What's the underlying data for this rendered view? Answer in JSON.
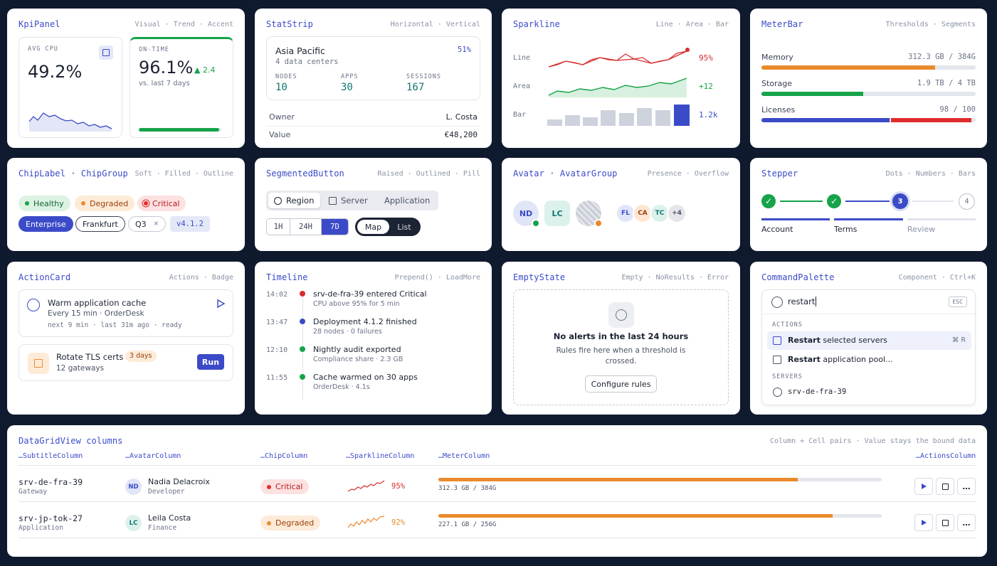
{
  "kpi": {
    "title": "KpiPanel",
    "sub": "Visual · Trend · Accent",
    "cpu_label": "AVG CPU",
    "cpu_value": "49.2%",
    "on_label": "ON-TIME",
    "on_value": "96.1%",
    "on_trend": "▲ 2.4",
    "on_note": "vs. last 7 days",
    "on_progress": 0.97
  },
  "stat": {
    "title": "StatStrip",
    "sub": "Horizontal · Vertical",
    "region": "Asia Pacific",
    "region_sub": "4 data centers",
    "pct": "51%",
    "nodes_l": "NODES",
    "nodes": "10",
    "apps_l": "APPS",
    "apps": "30",
    "sess_l": "SESSIONS",
    "sess": "167",
    "owner_l": "Owner",
    "owner": "L. Costa",
    "value_l": "Value",
    "value": "€48,200"
  },
  "spark": {
    "title": "Sparkline",
    "sub": "Line · Area · Bar",
    "line_l": "Line",
    "line_v": "95%",
    "area_l": "Area",
    "area_v": "+12",
    "bar_l": "Bar",
    "bar_v": "1.2k",
    "line_color": "#d92d2d",
    "area_color": "#16a34a",
    "bar_color": "#3b4bc8"
  },
  "meter": {
    "title": "MeterBar",
    "sub": "Thresholds · Segments",
    "mem_l": "Memory",
    "mem_v": "312.3 GB / 384G",
    "mem_frac": 0.81,
    "sto_l": "Storage",
    "sto_v": "1.9 TB / 4 TB",
    "sto_frac": 0.475,
    "lic_l": "Licenses",
    "lic_v": "98 / 100",
    "lic_frac": 0.98
  },
  "chip": {
    "title": "ChipLabel · ChipGroup",
    "sub": "Soft · Filled · Outline",
    "healthy": "Healthy",
    "degraded": "Degraded",
    "critical": "Critical",
    "enterprise": "Enterprise",
    "frankfurt": "Frankfurt",
    "q3": "Q3",
    "version": "v4.1.2"
  },
  "seg": {
    "title": "SegmentedButton",
    "sub": "Raised · Outlined · Pill",
    "region": "Region",
    "server": "Server",
    "application": "Application",
    "h1": "1H",
    "h24": "24H",
    "d7": "7D",
    "map": "Map",
    "list": "List"
  },
  "avatar": {
    "title": "Avatar · AvatarGroup",
    "sub": "Presence · Overflow",
    "a1": "ND",
    "a2": "LC",
    "g1": "FL",
    "g2": "CA",
    "g3": "TC",
    "more": "+4"
  },
  "stepper": {
    "title": "Stepper",
    "sub": "Dots · Numbers · Bars",
    "s3": "3",
    "s4": "4",
    "account": "Account",
    "terms": "Terms",
    "review": "Review"
  },
  "action": {
    "title": "ActionCard",
    "sub": "Actions · Badge",
    "c1_title": "Warm application cache",
    "c1_sub": "Every 15 min · OrderDesk",
    "c1_meta": "next 9 min · last 31m ago · ready",
    "c2_title": "Rotate TLS certs",
    "c2_badge": "3 days",
    "c2_sub": "12 gateways",
    "run": "Run"
  },
  "timeline": {
    "title": "Timeline",
    "sub": "Prepend() · LoadMore",
    "items": [
      {
        "time": "14:02",
        "title": "srv-de-fra-39 entered Critical",
        "sub": "CPU above 95% for 5 min",
        "color": "#d92d2d"
      },
      {
        "time": "13:47",
        "title": "Deployment 4.1.2 finished",
        "sub": "28 nodes · 0 failures",
        "color": "#3b4bc8"
      },
      {
        "time": "12:10",
        "title": "Nightly audit exported",
        "sub": "Compliance share · 2.3 GB",
        "color": "#16a34a"
      },
      {
        "time": "11:55",
        "title": "Cache warmed on 30 apps",
        "sub": "OrderDesk · 4.1s",
        "color": "#16a34a"
      }
    ]
  },
  "empty": {
    "title": "EmptyState",
    "sub": "Empty · NoResults · Error",
    "head": "No alerts in the last 24 hours",
    "body1": "Rules fire here when a threshold is",
    "body2": "crossed.",
    "btn": "Configure rules"
  },
  "cmd": {
    "title": "CommandPalette",
    "sub": "Component · Ctrl+K",
    "query": "restart",
    "esc": "ESC",
    "actions": "ACTIONS",
    "a1_b": "Restart",
    "a1_r": " selected servers",
    "a1_k": "⌘ R",
    "a2_b": "Restart",
    "a2_r": " application pool...",
    "servers": "SERVERS",
    "srv": "srv-de-fra-39"
  },
  "grid": {
    "title": "DataGridView columns",
    "sub": "Column + Cell pairs · Value stays the bound data",
    "h1": "…SubtitleColumn",
    "h2": "…AvatarColumn",
    "h3": "…ChipColumn",
    "h4": "…SparklineColumn",
    "h5": "…MeterColumn",
    "h6": "…ActionsColumn",
    "rows": [
      {
        "name": "srv-de-fra-39",
        "type": "Gateway",
        "ini": "ND",
        "person": "Nadia Delacroix",
        "role": "Developer",
        "chip": "Critical",
        "pct": "95%",
        "meter": "312.3 GB / 384G",
        "frac": 0.81
      },
      {
        "name": "srv-jp-tok-27",
        "type": "Application",
        "ini": "LC",
        "person": "Leila Costa",
        "role": "Finance",
        "chip": "Degraded",
        "pct": "92%",
        "meter": "227.1 GB / 256G",
        "frac": 0.89
      }
    ]
  }
}
